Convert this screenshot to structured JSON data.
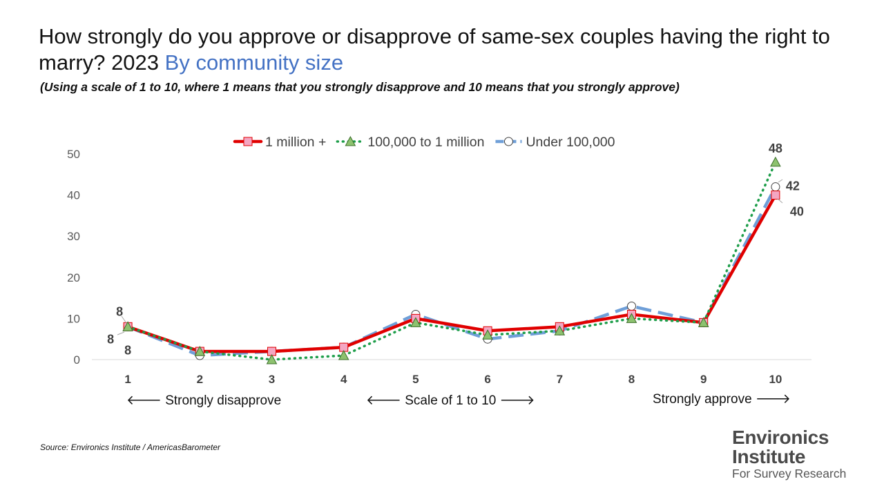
{
  "header": {
    "title_main": "How strongly do you approve or disapprove of same-sex couples having the right to marry?   2023",
    "title_accent": "By community size",
    "subtitle": "(Using a scale of 1 to 10, where 1 means that you strongly disapprove and 10 means that you strongly approve)"
  },
  "annotations": {
    "left": "🡐 Strongly disapprove",
    "middle": "🡐 Scale of 1 to 10 🡒",
    "right": "Strongly approve 🡒"
  },
  "source": "Source: Environics Institute / AmericasBarometer",
  "logo": {
    "line1": "Environics",
    "line2": "Institute",
    "line3": "For Survey Research"
  },
  "colors": {
    "series1": "#E00000",
    "series1_marker": "#F4A6C2",
    "series2": "#1E9E4A",
    "series2_marker": "#8DC26F",
    "series3": "#6F9FD8",
    "series3_marker": "#FFFFFF",
    "axis_text": "#595959"
  },
  "chart_data": {
    "type": "line",
    "categories": [
      "1",
      "2",
      "3",
      "4",
      "5",
      "6",
      "7",
      "8",
      "9",
      "10"
    ],
    "ylim": [
      0,
      50
    ],
    "yticks": [
      0,
      10,
      20,
      30,
      40,
      50
    ],
    "grid": false,
    "legend_position": "top",
    "series": [
      {
        "name": "1 million +",
        "values": [
          8,
          2,
          2,
          3,
          10,
          7,
          8,
          11,
          9,
          40
        ]
      },
      {
        "name": "100,000 to 1 million",
        "values": [
          8,
          2,
          0,
          1,
          9,
          6,
          7,
          10,
          9,
          48
        ]
      },
      {
        "name": "Under 100,000",
        "values": [
          8,
          1,
          2,
          3,
          11,
          5,
          7,
          13,
          9,
          42
        ]
      }
    ],
    "data_labels": [
      {
        "series": 0,
        "index": 0,
        "text": "8"
      },
      {
        "series": 1,
        "index": 0,
        "text": "8"
      },
      {
        "series": 2,
        "index": 0,
        "text": "8"
      },
      {
        "series": 0,
        "index": 9,
        "text": "40"
      },
      {
        "series": 1,
        "index": 9,
        "text": "48"
      },
      {
        "series": 2,
        "index": 9,
        "text": "42"
      }
    ]
  }
}
